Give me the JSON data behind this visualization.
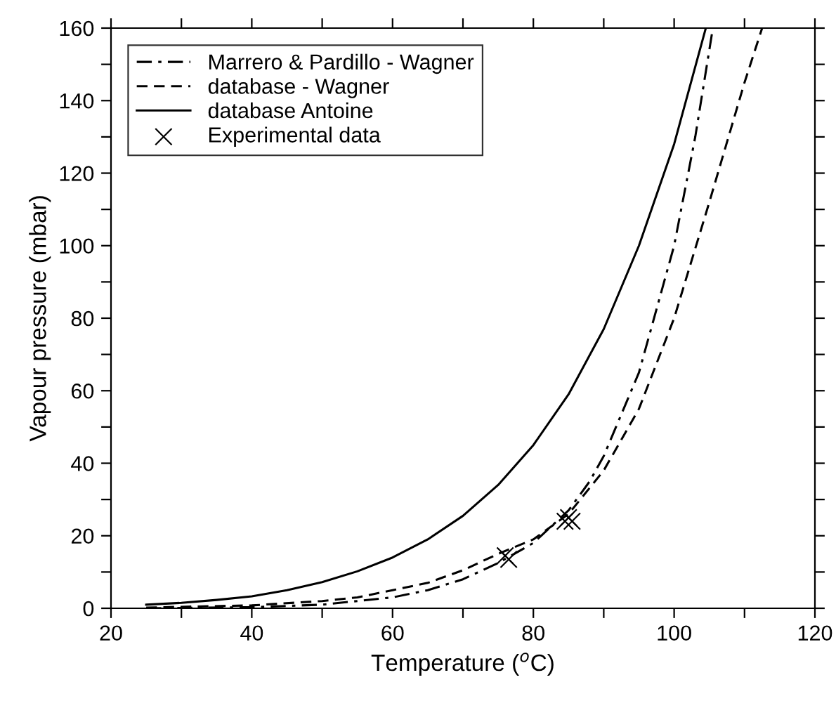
{
  "chart_data": {
    "type": "line",
    "xlabel": "Temperature ($^{o}$C)",
    "ylabel": "Vapour pressure (mbar)",
    "xlim": [
      20,
      120
    ],
    "ylim": [
      0,
      160
    ],
    "xticks": [
      20,
      {
        "value": 30,
        "label": null
      },
      40,
      {
        "value": 50,
        "label": null
      },
      60,
      {
        "value": 70,
        "label": null
      },
      80,
      {
        "value": 90,
        "label": null
      },
      100,
      {
        "value": 110,
        "label": null
      },
      120
    ],
    "yticks": [
      0,
      {
        "value": 10,
        "label": null
      },
      20,
      {
        "value": 30,
        "label": null
      },
      40,
      {
        "value": 50,
        "label": null
      },
      60,
      {
        "value": 70,
        "label": null
      },
      80,
      {
        "value": 90,
        "label": null
      },
      100,
      {
        "value": 110,
        "label": null
      },
      120,
      {
        "value": 130,
        "label": null
      },
      140,
      {
        "value": 150,
        "label": null
      },
      160
    ],
    "grid": false,
    "legend": "top left",
    "series": [
      {
        "name": "Marrero & Pardillo - Wagner",
        "color": "#000000",
        "line_style": "dashdot",
        "x": [
          25,
          40,
          50,
          55,
          60,
          65,
          70,
          75,
          80,
          85,
          88,
          90,
          95,
          100,
          103,
          105.5
        ],
        "values": [
          0,
          0.3,
          1,
          2,
          3,
          5,
          8,
          12.5,
          18,
          27,
          35,
          42,
          65,
          100,
          130,
          160
        ]
      },
      {
        "name": "database - Wagner",
        "color": "#000000",
        "line_style": "dashed",
        "x": [
          25,
          40,
          50,
          55,
          60,
          65,
          70,
          75,
          80,
          85,
          90,
          95,
          100,
          105,
          110,
          112.5
        ],
        "values": [
          0.2,
          0.8,
          2,
          3,
          5,
          7,
          10.5,
          15,
          19,
          26,
          38,
          55,
          80,
          112,
          145,
          160
        ]
      },
      {
        "name": "database Antoine",
        "color": "#000000",
        "line_style": "solid",
        "x": [
          25,
          30,
          35,
          40,
          45,
          50,
          55,
          60,
          65,
          70,
          75,
          80,
          85,
          90,
          95,
          100,
          104.5
        ],
        "values": [
          1,
          1.5,
          2.3,
          3.3,
          5,
          7.2,
          10.2,
          14,
          19,
          25.5,
          34,
          45,
          59,
          77,
          100,
          128,
          160
        ]
      },
      {
        "name": "Experimental data",
        "type": "scatter",
        "marker": "cross",
        "color": "#000000",
        "x": [
          76,
          76.5,
          84.5,
          85,
          85.5
        ],
        "values": [
          14.5,
          13.5,
          24,
          25,
          24
        ]
      }
    ]
  }
}
